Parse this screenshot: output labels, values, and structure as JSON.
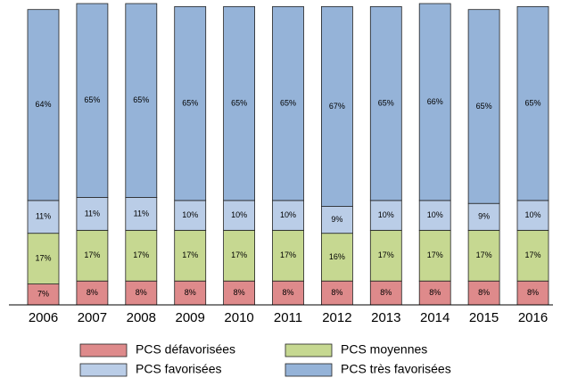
{
  "chart_data": {
    "type": "stacked_bar",
    "categories": [
      "2006",
      "2007",
      "2008",
      "2009",
      "2010",
      "2011",
      "2012",
      "2013",
      "2014",
      "2015",
      "2016"
    ],
    "series": [
      {
        "name": "PCS défavorisées",
        "color": "#de8a8b",
        "values": [
          7,
          8,
          8,
          8,
          8,
          8,
          8,
          8,
          8,
          8,
          8
        ],
        "value_labels": [
          "7%",
          "8%",
          "8%",
          "8%",
          "8%",
          "8%",
          "8%",
          "8%",
          "8%",
          "8%",
          "8%"
        ]
      },
      {
        "name": "PCS moyennes",
        "color": "#c6d891",
        "values": [
          17,
          17,
          17,
          17,
          17,
          17,
          16,
          17,
          17,
          17,
          17
        ],
        "value_labels": [
          "17%",
          "17%",
          "17%",
          "17%",
          "17%",
          "17%",
          "16%",
          "17%",
          "17%",
          "17%",
          "17%"
        ]
      },
      {
        "name": "PCS favorisées",
        "color": "#bacde7",
        "values": [
          11,
          11,
          11,
          10,
          10,
          10,
          9,
          10,
          10,
          9,
          10
        ],
        "value_labels": [
          "11%",
          "11%",
          "11%",
          "10%",
          "10%",
          "10%",
          "9%",
          "10%",
          "10%",
          "9%",
          "10%"
        ]
      },
      {
        "name": "PCS très favorisées",
        "color": "#95b3d8",
        "values": [
          64,
          65,
          65,
          65,
          65,
          65,
          67,
          65,
          66,
          65,
          65
        ],
        "value_labels": [
          "64%",
          "65%",
          "65%",
          "65%",
          "65%",
          "65%",
          "67%",
          "65%",
          "66%",
          "65%",
          "65%"
        ]
      }
    ]
  }
}
